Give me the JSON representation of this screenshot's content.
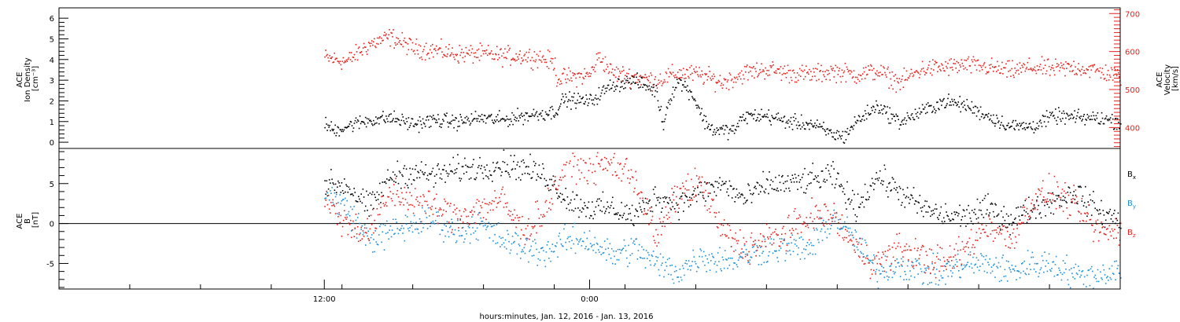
{
  "colors": {
    "density": "#000000",
    "velocity": "#e8211b",
    "bx": "#000000",
    "by": "#1b8fd8",
    "bz": "#e8211b"
  },
  "chart_data": [
    {
      "type": "scatter",
      "ylabel_lines": [
        "ACE",
        "Ion Density",
        "[cm⁻³]"
      ],
      "y2label_lines": [
        "ACE",
        "Velocity",
        "[km/s]"
      ],
      "ylim": [
        -0.3,
        6.5
      ],
      "y2lim": [
        345,
        715
      ],
      "yticks": [
        "0",
        "1",
        "2",
        "3",
        "4",
        "5",
        "6"
      ],
      "y2ticks": [
        "400",
        "500",
        "600",
        "700"
      ],
      "series": [
        {
          "key": "density",
          "axis": "left",
          "keyframes": [
            [
              0.0,
              0.9
            ],
            [
              0.4,
              0.6
            ],
            [
              1.0,
              0.8
            ],
            [
              2.0,
              1.1
            ],
            [
              3.0,
              1.2
            ],
            [
              4.0,
              0.9
            ],
            [
              5.0,
              1.1
            ],
            [
              6.0,
              1.0
            ],
            [
              7.0,
              1.2
            ],
            [
              8.0,
              1.1
            ],
            [
              9.0,
              1.3
            ],
            [
              10.4,
              1.5
            ],
            [
              10.8,
              2.1
            ],
            [
              12.0,
              2.0
            ],
            [
              13.0,
              2.8
            ],
            [
              14.0,
              3.0
            ],
            [
              15.0,
              2.5
            ],
            [
              15.3,
              0.9
            ],
            [
              15.6,
              2.2
            ],
            [
              16.0,
              3.0
            ],
            [
              16.6,
              2.4
            ],
            [
              17.2,
              1.0
            ],
            [
              17.6,
              0.6
            ],
            [
              18.5,
              0.6
            ],
            [
              19.0,
              1.3
            ],
            [
              20.0,
              1.3
            ],
            [
              21.0,
              1.0
            ],
            [
              22.0,
              0.9
            ],
            [
              23.0,
              0.4
            ],
            [
              23.5,
              0.3
            ],
            [
              24.0,
              1.0
            ],
            [
              25.0,
              1.8
            ],
            [
              26.0,
              1.0
            ],
            [
              27.0,
              1.5
            ],
            [
              28.0,
              2.0
            ],
            [
              29.0,
              1.8
            ],
            [
              30.0,
              1.3
            ],
            [
              31.0,
              0.8
            ],
            [
              32.0,
              0.8
            ],
            [
              33.0,
              1.3
            ],
            [
              34.0,
              1.2
            ],
            [
              35.0,
              1.2
            ],
            [
              36.0,
              1.0
            ]
          ],
          "noise": 0.35
        },
        {
          "key": "velocity",
          "axis": "right",
          "keyframes": [
            [
              0.0,
              585
            ],
            [
              1.0,
              575
            ],
            [
              2.0,
              620
            ],
            [
              3.0,
              640
            ],
            [
              4.0,
              610
            ],
            [
              5.0,
              605
            ],
            [
              6.0,
              595
            ],
            [
              7.0,
              595
            ],
            [
              8.0,
              590
            ],
            [
              9.0,
              590
            ],
            [
              9.8,
              585
            ],
            [
              10.4,
              570
            ],
            [
              10.5,
              530
            ],
            [
              12.0,
              540
            ],
            [
              12.4,
              590
            ],
            [
              13.0,
              545
            ],
            [
              14.0,
              535
            ],
            [
              15.0,
              525
            ],
            [
              16.0,
              545
            ],
            [
              17.0,
              540
            ],
            [
              18.0,
              520
            ],
            [
              19.0,
              545
            ],
            [
              20.0,
              555
            ],
            [
              21.0,
              545
            ],
            [
              22.0,
              540
            ],
            [
              23.0,
              550
            ],
            [
              24.0,
              540
            ],
            [
              25.0,
              550
            ],
            [
              26.0,
              520
            ],
            [
              27.0,
              555
            ],
            [
              28.0,
              560
            ],
            [
              29.0,
              565
            ],
            [
              30.0,
              560
            ],
            [
              31.0,
              550
            ],
            [
              32.0,
              560
            ],
            [
              33.0,
              555
            ],
            [
              34.0,
              560
            ],
            [
              35.0,
              550
            ],
            [
              36.0,
              535
            ]
          ],
          "noise": 24
        }
      ]
    },
    {
      "type": "scatter",
      "ylabel_lines": [
        "ACE",
        "B",
        "[nT]"
      ],
      "ylim": [
        -8.2,
        9.4
      ],
      "yticks": [
        "-5",
        "0",
        "5"
      ],
      "zero_line": true,
      "legend": [
        "B",
        "B",
        "B"
      ],
      "legend_subs": [
        "x",
        "y",
        "z"
      ],
      "legend_placement": "right",
      "series": [
        {
          "key": "bx",
          "keyframes": [
            [
              0.0,
              5.0
            ],
            [
              1.0,
              4.8
            ],
            [
              2.0,
              2.0
            ],
            [
              3.0,
              6.0
            ],
            [
              4.0,
              6.5
            ],
            [
              5.0,
              6.0
            ],
            [
              6.0,
              6.8
            ],
            [
              7.0,
              7.0
            ],
            [
              8.0,
              7.5
            ],
            [
              9.0,
              7.0
            ],
            [
              10.0,
              6.0
            ],
            [
              11.0,
              3.0
            ],
            [
              12.0,
              2.0
            ],
            [
              13.0,
              2.0
            ],
            [
              14.0,
              1.0
            ],
            [
              15.0,
              3.5
            ],
            [
              16.0,
              2.5
            ],
            [
              17.0,
              4.0
            ],
            [
              18.0,
              5.0
            ],
            [
              19.0,
              3.0
            ],
            [
              20.0,
              5.0
            ],
            [
              21.0,
              5.0
            ],
            [
              22.0,
              5.5
            ],
            [
              23.0,
              6.0
            ],
            [
              24.0,
              2.0
            ],
            [
              25.0,
              6.0
            ],
            [
              26.0,
              4.0
            ],
            [
              27.0,
              2.0
            ],
            [
              28.0,
              1.0
            ],
            [
              29.0,
              1.0
            ],
            [
              30.0,
              2.0
            ],
            [
              31.0,
              0.5
            ],
            [
              32.0,
              2.0
            ],
            [
              33.0,
              3.0
            ],
            [
              34.0,
              4.0
            ],
            [
              35.0,
              1.5
            ],
            [
              36.0,
              0.5
            ]
          ],
          "noise": 1.6
        },
        {
          "key": "by",
          "keyframes": [
            [
              0.0,
              4.0
            ],
            [
              1.0,
              2.0
            ],
            [
              2.0,
              -2.0
            ],
            [
              3.0,
              -1.0
            ],
            [
              4.0,
              0.0
            ],
            [
              5.0,
              0.5
            ],
            [
              6.0,
              -1.0
            ],
            [
              7.0,
              0.0
            ],
            [
              8.0,
              -2.0
            ],
            [
              9.0,
              -3.0
            ],
            [
              10.0,
              -3.5
            ],
            [
              11.0,
              -2.0
            ],
            [
              12.0,
              -2.0
            ],
            [
              13.0,
              -4.0
            ],
            [
              14.0,
              -3.0
            ],
            [
              15.0,
              -5.0
            ],
            [
              16.0,
              -6.0
            ],
            [
              17.0,
              -4.0
            ],
            [
              18.0,
              -4.5
            ],
            [
              19.0,
              -4.0
            ],
            [
              20.0,
              -3.0
            ],
            [
              21.0,
              -3.0
            ],
            [
              22.0,
              -3.0
            ],
            [
              23.0,
              1.0
            ],
            [
              24.0,
              -2.0
            ],
            [
              25.0,
              -6.0
            ],
            [
              26.0,
              -5.0
            ],
            [
              27.0,
              -6.0
            ],
            [
              28.0,
              -6.0
            ],
            [
              29.0,
              -5.0
            ],
            [
              30.0,
              -5.0
            ],
            [
              31.0,
              -6.0
            ],
            [
              32.0,
              -5.0
            ],
            [
              33.0,
              -5.0
            ],
            [
              34.0,
              -6.5
            ],
            [
              35.0,
              -6.5
            ],
            [
              36.0,
              -5.5
            ]
          ],
          "noise": 1.8
        },
        {
          "key": "bz",
          "keyframes": [
            [
              0.0,
              3.0
            ],
            [
              1.0,
              0.0
            ],
            [
              2.0,
              -1.0
            ],
            [
              3.0,
              4.0
            ],
            [
              4.0,
              3.0
            ],
            [
              5.0,
              2.0
            ],
            [
              6.0,
              1.0
            ],
            [
              7.0,
              2.0
            ],
            [
              8.0,
              3.0
            ],
            [
              9.0,
              -1.0
            ],
            [
              10.0,
              2.0
            ],
            [
              11.0,
              8.0
            ],
            [
              12.0,
              7.0
            ],
            [
              13.0,
              7.5
            ],
            [
              14.0,
              6.0
            ],
            [
              15.0,
              -2.0
            ],
            [
              16.0,
              4.0
            ],
            [
              17.0,
              5.0
            ],
            [
              18.0,
              -1.0
            ],
            [
              19.0,
              -3.0
            ],
            [
              20.0,
              -2.0
            ],
            [
              21.0,
              -1.0
            ],
            [
              22.0,
              1.0
            ],
            [
              23.0,
              1.0
            ],
            [
              24.0,
              -3.0
            ],
            [
              25.0,
              -5.0
            ],
            [
              26.0,
              -3.0
            ],
            [
              27.0,
              -4.0
            ],
            [
              28.0,
              -5.0
            ],
            [
              29.0,
              -3.0
            ],
            [
              30.0,
              0.0
            ],
            [
              31.0,
              -2.0
            ],
            [
              32.0,
              3.0
            ],
            [
              33.0,
              4.0
            ],
            [
              34.0,
              2.0
            ],
            [
              35.0,
              -1.0
            ],
            [
              36.0,
              -1.0
            ]
          ],
          "noise": 2.0
        }
      ]
    }
  ],
  "x_axis": {
    "xlim": [
      -12,
      36
    ],
    "data_extent": [
      0,
      36
    ],
    "ticks": [
      {
        "x": 0,
        "label": "12:00"
      },
      {
        "x": 12,
        "label": "0:00"
      }
    ],
    "minor_step": 3.2,
    "xlabel": "hours:minutes, Jan. 12, 2016 - Jan. 13, 2016"
  }
}
